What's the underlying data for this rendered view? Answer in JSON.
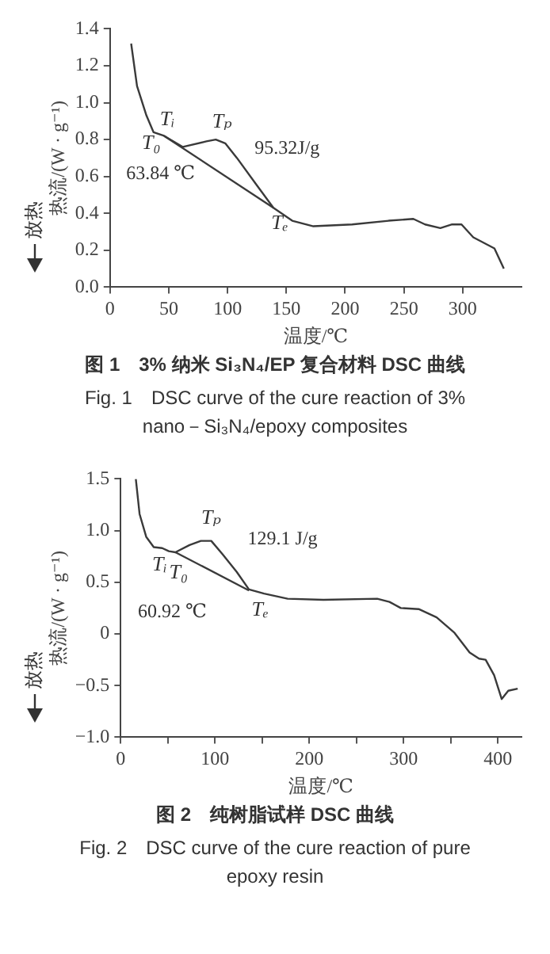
{
  "chart_data": [
    {
      "type": "line",
      "title": "图 1　3% 纳米 Si₃N₄/EP 复合材料 DSC 曲线",
      "subtitle": "Fig. 1　DSC curve of the cure reaction of 3% nano－Si₃N₄/epoxy composites",
      "xlabel": "温度/℃",
      "ylabel": "热流/(W · g⁻¹)",
      "series": [
        {
          "color": "#3a3a3a",
          "x": [
            18,
            23,
            31,
            37,
            46,
            62,
            82,
            90,
            98,
            108,
            124,
            139,
            155,
            173,
            206,
            237,
            258,
            268,
            281,
            291,
            299,
            309,
            327,
            335
          ],
          "values": [
            1.32,
            1.09,
            0.93,
            0.84,
            0.82,
            0.76,
            0.79,
            0.8,
            0.78,
            0.7,
            0.56,
            0.43,
            0.36,
            0.33,
            0.34,
            0.36,
            0.37,
            0.34,
            0.32,
            0.34,
            0.34,
            0.27,
            0.21,
            0.1
          ]
        },
        {
          "color": "#3a3a3a",
          "x": [
            46,
            139
          ],
          "values": [
            0.82,
            0.43
          ]
        }
      ],
      "xlim": [
        0,
        350
      ],
      "xticks": [
        0,
        50,
        100,
        150,
        200,
        250,
        300
      ],
      "ylim": [
        0,
        1.4
      ],
      "yticks": [
        {
          "value": 0,
          "label": "0.0"
        },
        {
          "value": 0.2,
          "label": "0.2"
        },
        {
          "value": 0.4,
          "label": "0.4"
        },
        {
          "value": 0.6,
          "label": "0.6"
        },
        {
          "value": 0.8,
          "label": "0.8"
        },
        {
          "value": 1,
          "label": "1.0"
        },
        {
          "value": 1.2,
          "label": "1.2"
        },
        {
          "value": 1.4,
          "label": "1.4"
        }
      ],
      "grid": false,
      "legend": false,
      "marker": "none",
      "line_style": "solid",
      "annotations": [
        "放热",
        {
          "text": "Tᵢ",
          "x": 46,
          "y": 0.82
        },
        {
          "text": "T₀",
          "x": 62,
          "y": 0.76
        },
        {
          "text": "Tₚ",
          "x": 90,
          "y": 0.8
        },
        {
          "text": "Tₑ",
          "x": 139,
          "y": 0.43
        },
        "95.32J/g",
        "63.84 ℃"
      ]
    },
    {
      "type": "line",
      "title": "图 2　纯树脂试样 DSC 曲线",
      "subtitle": "Fig. 2　DSC curve of the cure reaction of pure epoxy resin",
      "xlabel": "温度/℃",
      "ylabel": "热流/(W · g⁻¹)",
      "series": [
        {
          "color": "#3a3a3a",
          "x": [
            16,
            20,
            27,
            35,
            44,
            51,
            58,
            73,
            85,
            96,
            108,
            123,
            136,
            152,
            177,
            215,
            272,
            285,
            297,
            316,
            335,
            354,
            370,
            380,
            387,
            396,
            404,
            411,
            421
          ],
          "values": [
            1.5,
            1.16,
            0.94,
            0.84,
            0.83,
            0.8,
            0.79,
            0.86,
            0.9,
            0.9,
            0.77,
            0.6,
            0.43,
            0.39,
            0.34,
            0.33,
            0.34,
            0.31,
            0.25,
            0.24,
            0.16,
            0.01,
            -0.18,
            -0.24,
            -0.25,
            -0.4,
            -0.63,
            -0.55,
            -0.53
          ]
        },
        {
          "color": "#3a3a3a",
          "x": [
            58,
            136
          ],
          "values": [
            0.79,
            0.42
          ]
        }
      ],
      "xlim": [
        0,
        425
      ],
      "xticks": [
        0,
        {
          "value": 50,
          "label": null
        },
        100,
        {
          "value": 150,
          "label": null
        },
        200,
        {
          "value": 250,
          "label": null
        },
        300,
        {
          "value": 350,
          "label": null
        },
        400
      ],
      "ylim": [
        -1,
        1.5
      ],
      "yticks": [
        {
          "value": -1,
          "label": "−1.0"
        },
        {
          "value": -0.5,
          "label": "−0.5"
        },
        0,
        {
          "value": 0.5,
          "label": "0.5"
        },
        {
          "value": 1,
          "label": "1.0"
        },
        {
          "value": 1.5,
          "label": "1.5"
        }
      ],
      "grid": false,
      "legend": false,
      "marker": "none",
      "line_style": "solid",
      "annotations": [
        "放热",
        {
          "text": "Tₚ",
          "x": 96,
          "y": 0.9
        },
        "129.1 J/g",
        {
          "text": "Tᵢ",
          "x": 58,
          "y": 0.79
        },
        {
          "text": "T₀",
          "x": 58,
          "y": 0.79
        },
        "60.92 ℃",
        {
          "text": "Tₑ",
          "x": 136,
          "y": 0.43
        }
      ]
    }
  ]
}
